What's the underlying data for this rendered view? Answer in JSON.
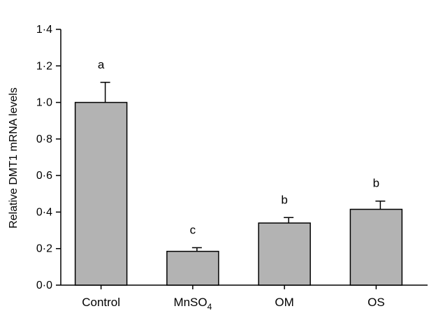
{
  "chart_data": {
    "type": "bar",
    "categories": [
      "Control",
      "MnSO4",
      "OM",
      "OS"
    ],
    "category_labels": [
      {
        "main": "Control",
        "sub": ""
      },
      {
        "main": "MnSO",
        "sub": "4"
      },
      {
        "main": "OM",
        "sub": ""
      },
      {
        "main": "OS",
        "sub": ""
      }
    ],
    "values": [
      1.0,
      0.185,
      0.34,
      0.415
    ],
    "error": [
      0.11,
      0.02,
      0.03,
      0.045
    ],
    "significance": [
      "a",
      "c",
      "b",
      "b"
    ],
    "title": "",
    "xlabel": "",
    "ylabel": "Relative DMT1 mRNA levels",
    "ylim": [
      0,
      1.4
    ],
    "yticks": [
      0,
      0.2,
      0.4,
      0.6,
      0.8,
      1.0,
      1.2,
      1.4
    ],
    "ytick_labels": [
      "0·0",
      "0·2",
      "0·4",
      "0·6",
      "0·8",
      "1·0",
      "1·2",
      "1·4"
    ],
    "grid": false,
    "legend": "none",
    "bar_color": "#b3b3b3",
    "edge_color": "#000000"
  }
}
